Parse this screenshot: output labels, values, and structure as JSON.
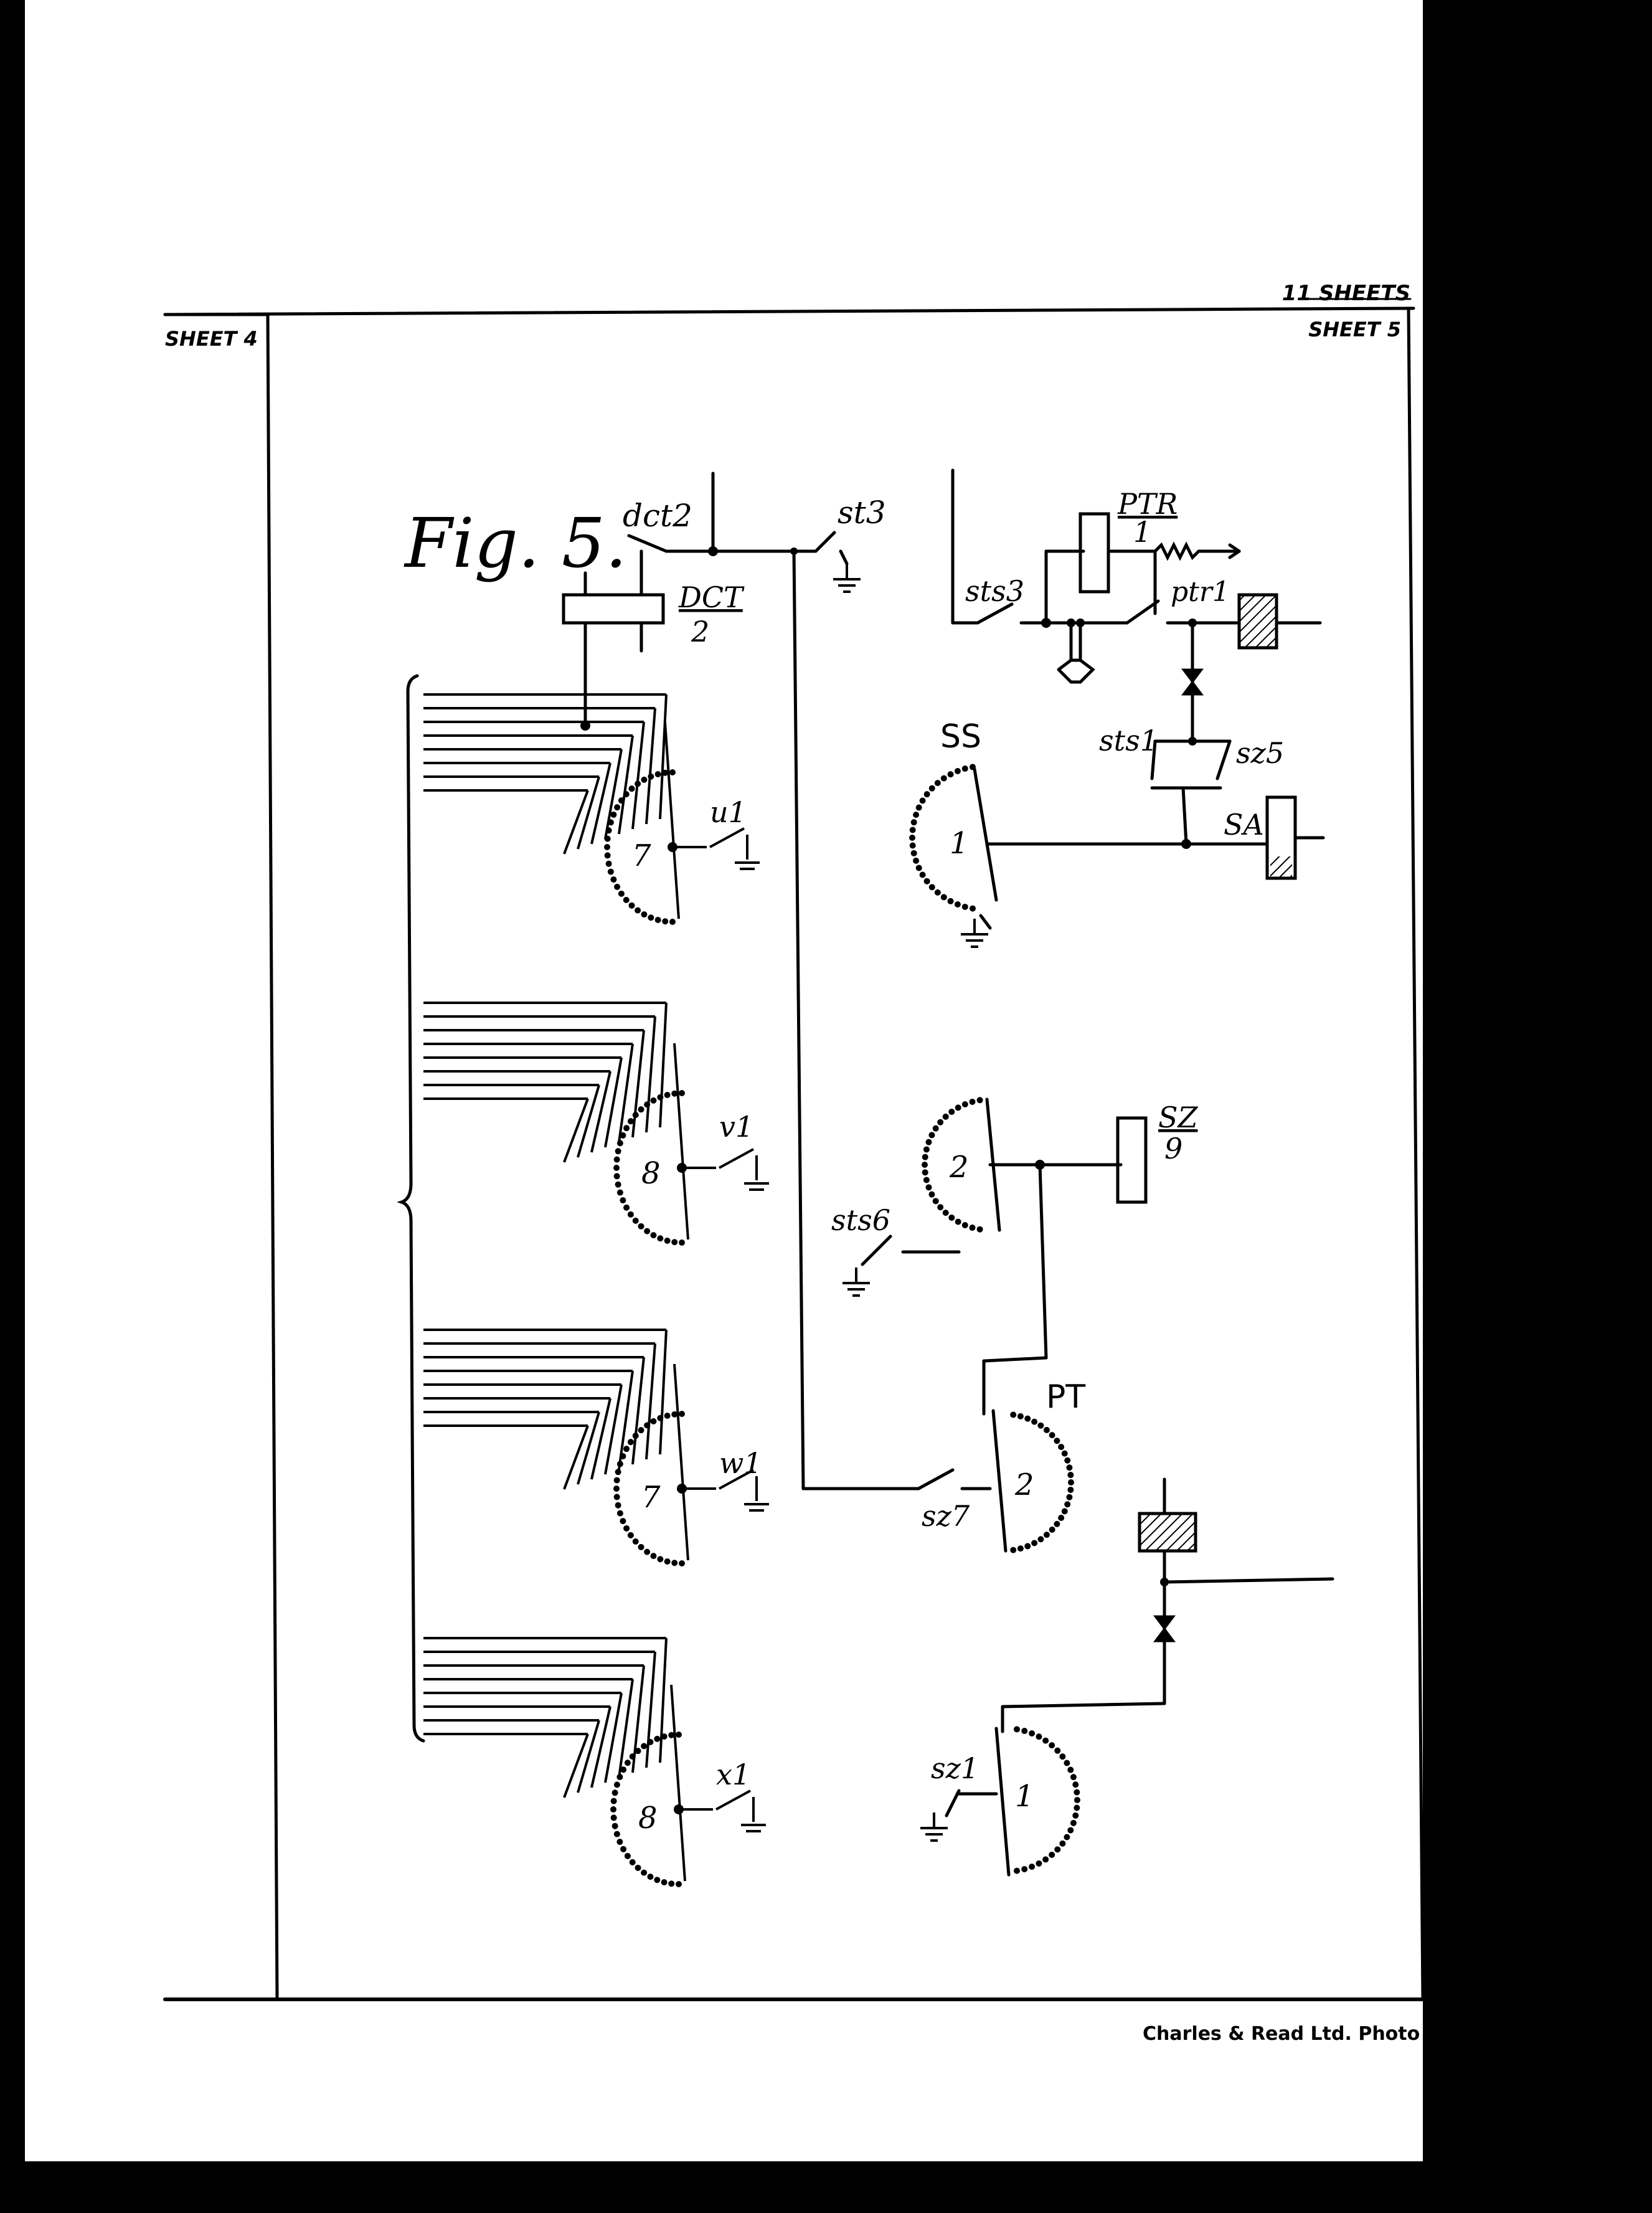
{
  "header": {
    "total_sheets": "11 SHEETS",
    "sheet_left": "SHEET 4",
    "sheet_right": "SHEET 5"
  },
  "figure": {
    "title": "Fig. 5."
  },
  "labels": {
    "dct2": "dct2",
    "st3": "st3",
    "DCT": "DCT",
    "DCT_num": "2",
    "PTR": "PTR",
    "PTR_num": "1",
    "sts3": "sts3",
    "ptr1": "ptr1",
    "sts1": "sts1",
    "sz5": "sz5",
    "SS": "SS",
    "SA": "SA",
    "SZ": "SZ",
    "SZ_num": "9",
    "sts6": "sts6",
    "PT": "PT",
    "sz7": "sz7",
    "sz1": "sz1",
    "u1": "u1",
    "v1": "v1",
    "w1": "w1",
    "x1": "x1",
    "wiper_u": "7",
    "wiper_v": "8",
    "wiper_w": "7",
    "wiper_x": "8",
    "wiper_ss": "1",
    "wiper_sz": "2",
    "wiper_pt": "2",
    "wiper_sz1": "1"
  },
  "footer": {
    "printer": "Charles & Read Ltd. Photo Litho"
  }
}
